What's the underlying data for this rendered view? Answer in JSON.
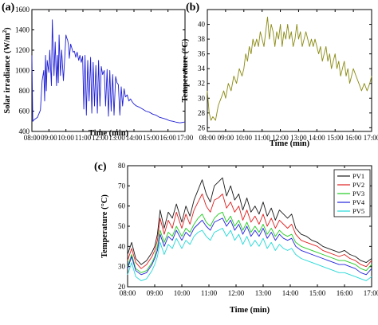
{
  "chart_data": [
    {
      "id": "a",
      "panel_label": "(a)",
      "type": "line",
      "xlabel": "Time (min)",
      "ylabel": "Solar irradiance (W/m²)",
      "ylabel_plain": "Solar irradiance (W/m",
      "ylabel_sup": "2",
      "ylabel_close": ")",
      "x_ticks": [
        "08:00",
        "09:00",
        "10:00",
        "11:00",
        "12:00",
        "13:00",
        "14:00",
        "15:00",
        "16:00",
        "17:00"
      ],
      "y_ticks": [
        400,
        600,
        800,
        1000,
        1200,
        1400,
        1600
      ],
      "xlim": [
        8,
        17
      ],
      "ylim": [
        400,
        1600
      ],
      "series": [
        {
          "color": "#1f1fd6",
          "x": [
            8.0,
            8.05,
            8.1,
            8.17,
            8.33,
            8.5,
            8.6,
            8.7,
            8.75,
            8.8,
            8.85,
            8.9,
            9.0,
            9.05,
            9.15,
            9.2,
            9.3,
            9.37,
            9.45,
            9.5,
            9.55,
            9.6,
            9.68,
            9.75,
            9.8,
            9.85,
            9.92,
            10.0,
            10.05,
            10.1,
            10.15,
            10.2,
            10.28,
            10.35,
            10.42,
            10.5,
            10.58,
            10.66,
            10.75,
            10.82,
            10.9,
            10.98,
            11.05,
            11.12,
            11.2,
            11.28,
            11.36,
            11.45,
            11.52,
            11.6,
            11.68,
            11.76,
            11.85,
            11.92,
            12.0,
            12.08,
            12.16,
            12.25,
            12.33,
            12.42,
            12.5,
            12.58,
            12.66,
            12.75,
            12.83,
            12.92,
            13.0,
            13.08,
            13.17,
            13.25,
            13.33,
            13.42,
            13.5,
            13.6,
            13.7,
            13.8,
            13.9,
            14.0,
            14.15,
            14.3,
            14.5,
            14.7,
            14.9,
            15.1,
            15.3,
            15.5,
            15.7,
            15.9,
            16.1,
            16.3,
            16.5,
            16.7,
            16.9,
            17.0
          ],
          "y": [
            1150,
            500,
            510,
            520,
            540,
            610,
            900,
            1000,
            700,
            1150,
            800,
            1100,
            980,
            1200,
            850,
            1500,
            950,
            1280,
            850,
            1150,
            880,
            1350,
            950,
            1200,
            1050,
            900,
            1100,
            1350,
            1320,
            1300,
            1250,
            1120,
            1260,
            1220,
            1180,
            1190,
            1130,
            1180,
            1100,
            1150,
            1080,
            1140,
            620,
            1150,
            560,
            1100,
            700,
            1130,
            580,
            1080,
            650,
            1050,
            580,
            1100,
            650,
            1040,
            960,
            1000,
            650,
            1010,
            550,
            1000,
            600,
            960,
            560,
            940,
            880,
            860,
            560,
            840,
            650,
            820,
            740,
            760,
            700,
            720,
            690,
            670,
            650,
            640,
            620,
            600,
            590,
            570,
            560,
            540,
            530,
            520,
            505,
            500,
            490,
            485,
            490,
            495
          ]
        }
      ]
    },
    {
      "id": "b",
      "panel_label": "(b)",
      "type": "line",
      "xlabel": "Time (min)",
      "ylabel": "Temperature (°C)",
      "x_ticks": [
        "08:00",
        "09:00",
        "10:00",
        "11:00",
        "12:00",
        "13:00",
        "14:00",
        "15:00",
        "16:00",
        "17:00"
      ],
      "y_ticks": [
        26,
        28,
        30,
        32,
        34,
        36,
        38,
        40
      ],
      "xlim": [
        8,
        17
      ],
      "ylim": [
        25.5,
        42
      ],
      "series": [
        {
          "color": "#8a8a14",
          "x": [
            8.0,
            8.1,
            8.2,
            8.3,
            8.45,
            8.6,
            8.75,
            8.9,
            9.0,
            9.15,
            9.3,
            9.45,
            9.6,
            9.75,
            9.9,
            10.0,
            10.1,
            10.2,
            10.3,
            10.4,
            10.5,
            10.6,
            10.7,
            10.8,
            10.9,
            11.0,
            11.1,
            11.2,
            11.3,
            11.4,
            11.5,
            11.6,
            11.7,
            11.8,
            11.9,
            12.0,
            12.1,
            12.2,
            12.3,
            12.4,
            12.5,
            12.6,
            12.7,
            12.8,
            12.9,
            13.0,
            13.1,
            13.2,
            13.3,
            13.4,
            13.5,
            13.6,
            13.7,
            13.8,
            13.9,
            14.0,
            14.1,
            14.2,
            14.3,
            14.4,
            14.5,
            14.6,
            14.7,
            14.8,
            14.9,
            15.0,
            15.1,
            15.2,
            15.3,
            15.4,
            15.5,
            15.6,
            15.7,
            15.8,
            15.9,
            16.0,
            16.15,
            16.3,
            16.45,
            16.6,
            16.75,
            16.9,
            17.0
          ],
          "y": [
            31,
            28,
            27,
            27.5,
            27,
            29,
            30,
            31,
            30,
            32,
            31,
            33,
            32,
            34,
            33,
            34,
            36,
            35,
            37,
            36,
            38,
            37,
            38,
            37,
            39,
            38,
            37,
            39,
            41,
            38,
            40,
            39,
            37,
            39,
            38,
            40,
            37,
            39,
            38,
            40,
            38,
            39,
            37,
            38,
            40,
            38,
            39,
            37,
            38,
            39,
            38,
            37,
            38,
            37,
            38,
            37,
            36,
            37,
            35,
            36,
            37,
            35,
            36,
            34,
            35,
            36,
            34,
            35,
            33,
            34,
            35,
            33,
            34,
            32,
            33,
            34,
            33,
            32,
            31,
            32,
            31,
            32,
            33
          ]
        }
      ]
    },
    {
      "id": "c",
      "panel_label": "(c)",
      "type": "line",
      "xlabel": "Time (min)",
      "ylabel": "Temperature (°C)",
      "x_ticks": [
        "08:00",
        "09:00",
        "10:00",
        "11:00",
        "12:00",
        "13:00",
        "14:00",
        "15:00",
        "16:00",
        "17:00"
      ],
      "y_ticks": [
        20,
        30,
        40,
        50,
        60,
        70,
        80
      ],
      "xlim": [
        8,
        17
      ],
      "ylim": [
        20,
        80
      ],
      "legend_position": "top-right",
      "x": [
        8.0,
        8.15,
        8.3,
        8.5,
        8.7,
        8.9,
        9.0,
        9.1,
        9.2,
        9.35,
        9.5,
        9.65,
        9.8,
        10.0,
        10.15,
        10.3,
        10.45,
        10.6,
        10.75,
        10.9,
        11.05,
        11.2,
        11.35,
        11.5,
        11.65,
        11.8,
        11.95,
        12.1,
        12.25,
        12.4,
        12.55,
        12.7,
        12.85,
        13.0,
        13.15,
        13.3,
        13.45,
        13.6,
        13.75,
        13.9,
        14.05,
        14.2,
        14.4,
        14.6,
        14.8,
        15.0,
        15.2,
        15.4,
        15.6,
        15.8,
        16.0,
        16.2,
        16.4,
        16.6,
        16.8,
        17.0
      ],
      "series": [
        {
          "name": "PV1",
          "color": "#1a1a1a",
          "y": [
            36,
            42,
            34,
            31,
            33,
            37,
            40,
            46,
            58,
            49,
            57,
            54,
            61,
            52,
            60,
            55,
            63,
            68,
            73,
            66,
            62,
            70,
            72,
            74,
            65,
            70,
            63,
            66,
            58,
            64,
            57,
            60,
            56,
            62,
            55,
            59,
            53,
            58,
            56,
            54,
            56,
            49,
            46,
            45,
            43,
            42,
            40,
            39,
            38,
            37,
            38,
            36,
            35,
            33,
            32,
            34
          ]
        },
        {
          "name": "PV2",
          "color": "#e02020",
          "y": [
            33,
            39,
            32,
            29,
            31,
            35,
            38,
            43,
            54,
            46,
            53,
            49,
            57,
            49,
            56,
            51,
            58,
            62,
            66,
            60,
            57,
            63,
            64,
            66,
            59,
            62,
            57,
            60,
            53,
            58,
            52,
            55,
            51,
            56,
            50,
            54,
            49,
            53,
            51,
            49,
            51,
            46,
            43,
            42,
            41,
            40,
            38,
            37,
            36,
            35,
            36,
            34,
            33,
            31,
            30,
            33
          ]
        },
        {
          "name": "PV3",
          "color": "#22cc22",
          "y": [
            30,
            36,
            29,
            27,
            28,
            32,
            35,
            40,
            48,
            42,
            47,
            45,
            50,
            45,
            49,
            47,
            51,
            54,
            56,
            52,
            50,
            54,
            56,
            57,
            52,
            55,
            50,
            53,
            48,
            52,
            47,
            50,
            47,
            51,
            46,
            49,
            45,
            48,
            46,
            45,
            46,
            42,
            40,
            39,
            38,
            37,
            36,
            35,
            34,
            33,
            33,
            32,
            31,
            29,
            28,
            31
          ]
        },
        {
          "name": "PV4",
          "color": "#2222dd",
          "y": [
            29,
            35,
            28,
            26,
            27,
            31,
            34,
            38,
            46,
            40,
            45,
            43,
            48,
            43,
            47,
            45,
            49,
            51,
            53,
            50,
            48,
            52,
            53,
            54,
            50,
            53,
            48,
            51,
            46,
            50,
            45,
            48,
            45,
            49,
            44,
            47,
            43,
            46,
            44,
            43,
            44,
            40,
            38,
            37,
            36,
            35,
            34,
            33,
            32,
            31,
            31,
            30,
            29,
            27,
            26,
            29
          ]
        },
        {
          "name": "PV5",
          "color": "#22d8d8",
          "y": [
            26,
            32,
            25,
            23,
            24,
            28,
            31,
            35,
            42,
            36,
            41,
            39,
            44,
            39,
            43,
            41,
            45,
            47,
            48,
            45,
            43,
            47,
            48,
            49,
            45,
            48,
            43,
            46,
            41,
            45,
            40,
            43,
            40,
            44,
            39,
            42,
            38,
            41,
            39,
            38,
            39,
            36,
            34,
            33,
            32,
            31,
            30,
            29,
            28,
            27,
            27,
            26,
            25,
            24,
            23,
            25
          ]
        }
      ]
    }
  ]
}
